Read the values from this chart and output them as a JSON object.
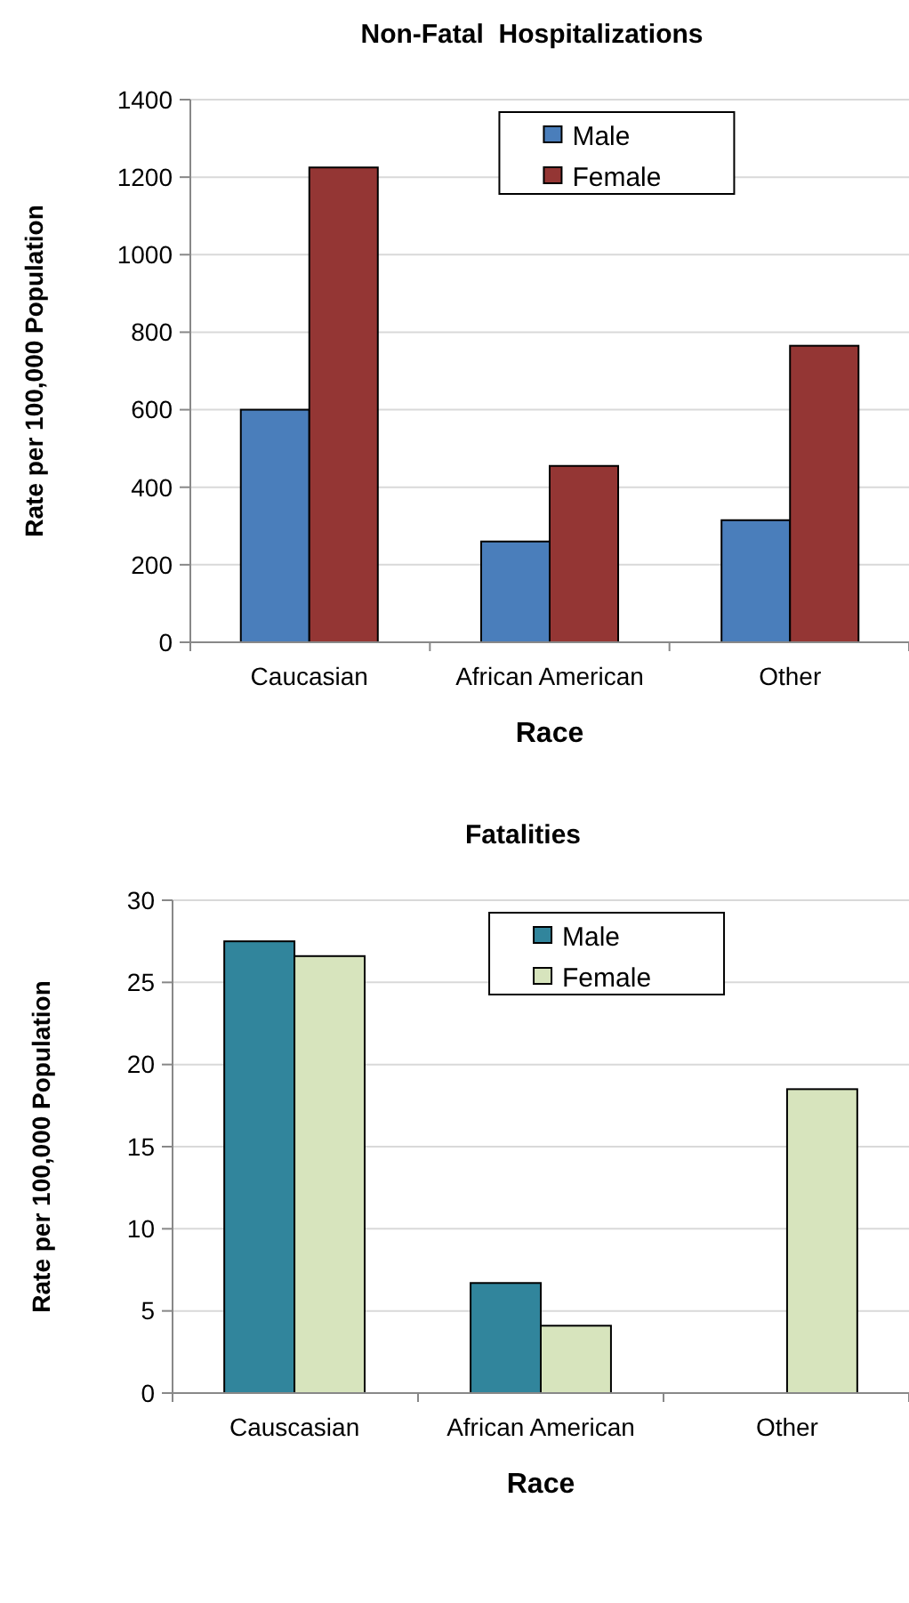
{
  "chart_data": [
    {
      "type": "bar",
      "title": "Non-Fatal  Hospitalizations",
      "xlabel": "Race",
      "ylabel": "Rate per 100,000 Population",
      "categories": [
        "Caucasian",
        "African American",
        "Other"
      ],
      "series": [
        {
          "name": "Male",
          "color": "#4a7ebb",
          "values": [
            600,
            260,
            315
          ]
        },
        {
          "name": "Female",
          "color": "#943634",
          "values": [
            1225,
            455,
            765
          ]
        }
      ],
      "ylim": [
        0,
        1400
      ],
      "yticks": [
        0,
        200,
        400,
        600,
        800,
        1000,
        1200,
        1400
      ],
      "grid": "y",
      "legend": "top right"
    },
    {
      "type": "bar",
      "title": "Fatalities",
      "xlabel": "Race",
      "ylabel": "Rate per 100,000 Population",
      "categories": [
        "Causcasian",
        "African American",
        "Other"
      ],
      "series": [
        {
          "name": "Male",
          "color": "#31859c",
          "values": [
            27.5,
            6.7,
            null
          ]
        },
        {
          "name": "Female",
          "color": "#d7e4bd",
          "values": [
            26.6,
            4.1,
            18.5
          ]
        }
      ],
      "ylim": [
        0,
        30
      ],
      "yticks": [
        0,
        5,
        10,
        15,
        20,
        25,
        30
      ],
      "grid": "y",
      "legend": "top right"
    }
  ]
}
